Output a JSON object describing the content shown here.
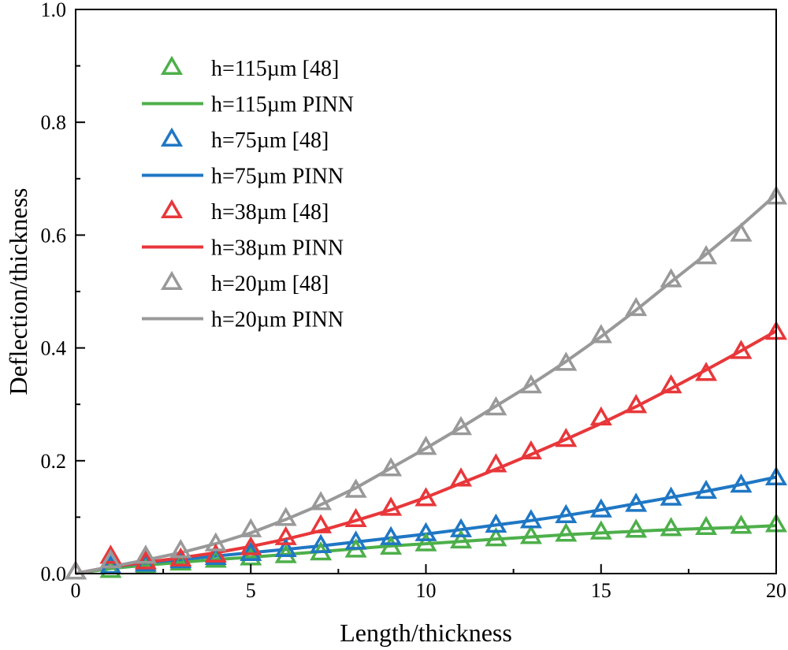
{
  "chart_data": {
    "type": "line",
    "title": "",
    "xlabel": "Length/thickness",
    "ylabel": "Deflection/thickness",
    "xlim": [
      0,
      20
    ],
    "ylim": [
      0,
      1.0
    ],
    "xticks": [
      0,
      5,
      10,
      15,
      20
    ],
    "xtick_labels": [
      "0",
      "5",
      "10",
      "15",
      "20"
    ],
    "yticks": [
      0,
      0.2,
      0.4,
      0.6,
      0.8,
      1.0
    ],
    "ytick_labels": [
      "0.0",
      "0.2",
      "0.4",
      "0.6",
      "0.8",
      "1.0"
    ],
    "grid": false,
    "legend_position": "top-left",
    "x": [
      0,
      1,
      2,
      3,
      4,
      5,
      6,
      7,
      8,
      9,
      10,
      11,
      12,
      13,
      14,
      15,
      16,
      17,
      18,
      19,
      20
    ],
    "series": [
      {
        "name": "h=115µm [48]",
        "kind": "marker",
        "color": "#4daf4a",
        "values": [
          0.002,
          0.005,
          0.012,
          0.018,
          0.023,
          0.027,
          0.031,
          0.036,
          0.041,
          0.046,
          0.052,
          0.057,
          0.061,
          0.065,
          0.069,
          0.073,
          0.076,
          0.079,
          0.081,
          0.083,
          0.086
        ]
      },
      {
        "name": "h=115µm PINN",
        "kind": "line",
        "color": "#4daf4a",
        "values": [
          0.0,
          0.009,
          0.015,
          0.02,
          0.025,
          0.029,
          0.034,
          0.039,
          0.044,
          0.049,
          0.053,
          0.057,
          0.061,
          0.065,
          0.069,
          0.072,
          0.075,
          0.078,
          0.08,
          0.082,
          0.085
        ]
      },
      {
        "name": "h=75µm [48]",
        "kind": "marker",
        "color": "#1f77c4",
        "values": [
          0.002,
          0.012,
          0.016,
          0.022,
          0.028,
          0.035,
          0.042,
          0.049,
          0.055,
          0.063,
          0.07,
          0.077,
          0.085,
          0.093,
          0.102,
          0.112,
          0.122,
          0.133,
          0.145,
          0.156,
          0.169
        ]
      },
      {
        "name": "h=75µm PINN",
        "kind": "line",
        "color": "#1f77c4",
        "values": [
          0.0,
          0.012,
          0.019,
          0.025,
          0.031,
          0.037,
          0.043,
          0.049,
          0.056,
          0.063,
          0.07,
          0.078,
          0.086,
          0.094,
          0.103,
          0.113,
          0.124,
          0.135,
          0.146,
          0.158,
          0.171
        ]
      },
      {
        "name": "h=38µm [48]",
        "kind": "marker",
        "color": "#e8373a",
        "values": [
          0.002,
          0.03,
          0.02,
          0.025,
          0.032,
          0.045,
          0.063,
          0.084,
          0.095,
          0.115,
          0.132,
          0.167,
          0.192,
          0.215,
          0.237,
          0.275,
          0.297,
          0.332,
          0.354,
          0.393,
          0.427
        ]
      },
      {
        "name": "h=38µm PINN",
        "kind": "line",
        "color": "#e8373a",
        "values": [
          0.0,
          0.012,
          0.02,
          0.028,
          0.037,
          0.048,
          0.061,
          0.076,
          0.094,
          0.113,
          0.135,
          0.16,
          0.185,
          0.211,
          0.238,
          0.266,
          0.296,
          0.328,
          0.361,
          0.395,
          0.43
        ]
      },
      {
        "name": "h=20µm [48]",
        "kind": "marker",
        "color": "#999999",
        "values": [
          0.002,
          0.022,
          0.03,
          0.04,
          0.052,
          0.077,
          0.097,
          0.125,
          0.147,
          0.185,
          0.223,
          0.258,
          0.293,
          0.332,
          0.372,
          0.421,
          0.469,
          0.52,
          0.561,
          0.601,
          0.667
        ]
      },
      {
        "name": "h=20µm PINN",
        "kind": "line",
        "color": "#999999",
        "values": [
          0.0,
          0.012,
          0.024,
          0.037,
          0.053,
          0.072,
          0.096,
          0.122,
          0.152,
          0.187,
          0.222,
          0.259,
          0.297,
          0.335,
          0.376,
          0.42,
          0.467,
          0.517,
          0.566,
          0.617,
          0.672
        ]
      }
    ]
  }
}
